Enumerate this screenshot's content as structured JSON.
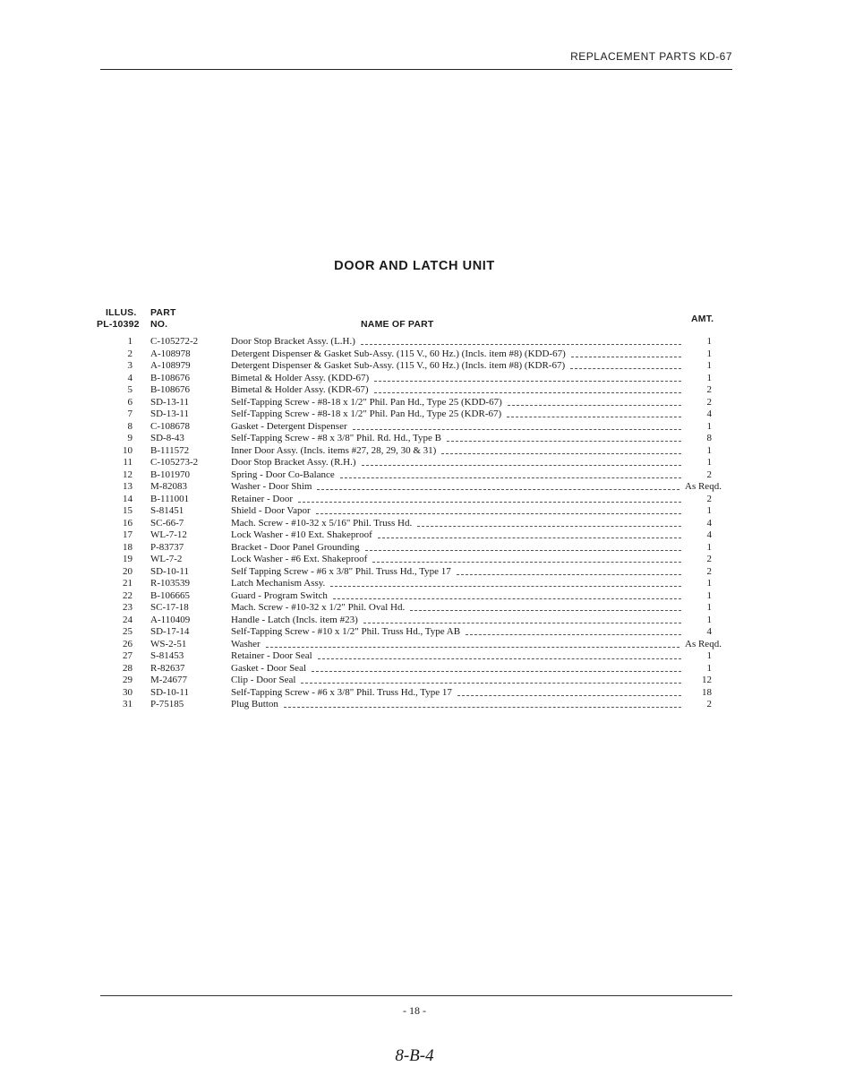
{
  "header": {
    "running_title": "REPLACEMENT PARTS KD-67"
  },
  "title": "DOOR AND LATCH UNIT",
  "columns": {
    "illus_line1": "ILLUS.",
    "illus_line2": "PL-10392",
    "part_line1": "PART",
    "part_line2": "NO.",
    "name": "NAME OF PART",
    "amt": "AMT."
  },
  "rows": [
    {
      "num": "1",
      "part": "C-105272-2",
      "name": "Door Stop Bracket Assy. (L.H.)",
      "amt": "1"
    },
    {
      "num": "2",
      "part": "A-108978",
      "name": "Detergent Dispenser & Gasket Sub-Assy. (115 V., 60 Hz.) (Incls. item #8) (KDD-67)",
      "amt": "1"
    },
    {
      "num": "3",
      "part": "A-108979",
      "name": "Detergent Dispenser & Gasket Sub-Assy. (115 V., 60 Hz.) (Incls. item #8) (KDR-67)",
      "amt": "1"
    },
    {
      "num": "4",
      "part": "B-108676",
      "name": "Bimetal & Holder Assy. (KDD-67)",
      "amt": "1"
    },
    {
      "num": "5",
      "part": "B-108676",
      "name": "Bimetal & Holder Assy. (KDR-67)",
      "amt": "2"
    },
    {
      "num": "6",
      "part": "SD-13-11",
      "name": "Self-Tapping Screw - #8-18 x 1/2\" Phil. Pan Hd., Type 25 (KDD-67)",
      "amt": "2"
    },
    {
      "num": "7",
      "part": "SD-13-11",
      "name": "Self-Tapping Screw - #8-18 x 1/2\" Phil. Pan Hd., Type 25 (KDR-67)",
      "amt": "4"
    },
    {
      "num": "8",
      "part": "C-108678",
      "name": "Gasket - Detergent Dispenser",
      "amt": "1"
    },
    {
      "num": "9",
      "part": "SD-8-43",
      "name": "Self-Tapping Screw - #8 x 3/8\" Phil. Rd. Hd., Type B",
      "amt": "8"
    },
    {
      "num": "10",
      "part": "B-111572",
      "name": "Inner Door Assy. (Incls. items #27, 28, 29, 30 & 31)",
      "amt": "1"
    },
    {
      "num": "11",
      "part": "C-105273-2",
      "name": "Door Stop Bracket Assy. (R.H.)",
      "amt": "1"
    },
    {
      "num": "12",
      "part": "B-101970",
      "name": "Spring - Door Co-Balance",
      "amt": "2"
    },
    {
      "num": "13",
      "part": "M-82083",
      "name": "Washer - Door Shim",
      "amt": "As Reqd."
    },
    {
      "num": "14",
      "part": "B-111001",
      "name": "Retainer - Door",
      "amt": "2"
    },
    {
      "num": "15",
      "part": "S-81451",
      "name": "Shield - Door Vapor",
      "amt": "1"
    },
    {
      "num": "16",
      "part": "SC-66-7",
      "name": "Mach. Screw - #10-32 x 5/16\" Phil. Truss Hd.",
      "amt": "4"
    },
    {
      "num": "17",
      "part": "WL-7-12",
      "name": "Lock Washer - #10 Ext. Shakeproof",
      "amt": "4"
    },
    {
      "num": "18",
      "part": "P-83737",
      "name": "Bracket - Door Panel Grounding",
      "amt": "1"
    },
    {
      "num": "19",
      "part": "WL-7-2",
      "name": "Lock Washer - #6 Ext. Shakeproof",
      "amt": "2"
    },
    {
      "num": "20",
      "part": "SD-10-11",
      "name": "Self Tapping Screw - #6 x 3/8\" Phil. Truss Hd., Type 17",
      "amt": "2"
    },
    {
      "num": "21",
      "part": "R-103539",
      "name": "Latch Mechanism Assy.",
      "amt": "1"
    },
    {
      "num": "22",
      "part": "B-106665",
      "name": "Guard - Program Switch",
      "amt": "1"
    },
    {
      "num": "23",
      "part": "SC-17-18",
      "name": "Mach. Screw - #10-32 x 1/2\" Phil. Oval Hd.",
      "amt": "1"
    },
    {
      "num": "24",
      "part": "A-110409",
      "name": "Handle - Latch (Incls. item #23)",
      "amt": "1"
    },
    {
      "num": "25",
      "part": "SD-17-14",
      "name": "Self-Tapping Screw - #10 x 1/2\" Phil. Truss Hd., Type AB",
      "amt": "4"
    },
    {
      "num": "26",
      "part": "WS-2-51",
      "name": "Washer",
      "amt": "As Reqd."
    },
    {
      "num": "27",
      "part": "S-81453",
      "name": "Retainer - Door Seal",
      "amt": "1"
    },
    {
      "num": "28",
      "part": "R-82637",
      "name": "Gasket - Door Seal",
      "amt": "1"
    },
    {
      "num": "29",
      "part": "M-24677",
      "name": "Clip - Door Seal",
      "amt": "12"
    },
    {
      "num": "30",
      "part": "SD-10-11",
      "name": "Self-Tapping Screw - #6 x 3/8\" Phil. Truss Hd., Type 17",
      "amt": "18"
    },
    {
      "num": "31",
      "part": "P-75185",
      "name": "Plug Button",
      "amt": "2"
    }
  ],
  "footer": {
    "page_number": "- 18 -",
    "handwritten_note": "8-B-4"
  }
}
